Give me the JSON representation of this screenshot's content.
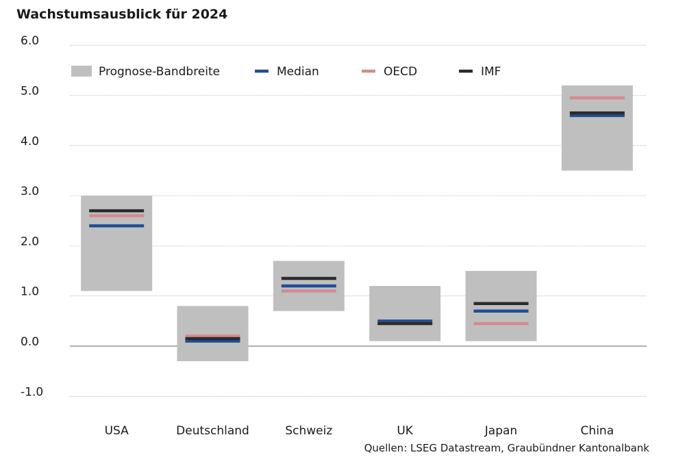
{
  "chart_data": {
    "type": "range-bar",
    "title": "Wachstumsausblick für 2024",
    "source": "Quellen: LSEG Datastream, Graubündner Kantonalbank",
    "ylim": [
      -1.0,
      6.0
    ],
    "yticks": [
      "6.0",
      "5.0",
      "4.0",
      "3.0",
      "2.0",
      "1.0",
      "0.0",
      "-1.0"
    ],
    "ytick_values": [
      6,
      5,
      4,
      3,
      2,
      1,
      0,
      -1
    ],
    "grid": true,
    "legend_position": "top-left",
    "legend": [
      {
        "key": "band",
        "label": "Prognose-Bandbreite"
      },
      {
        "key": "median",
        "label": "Median"
      },
      {
        "key": "oecd",
        "label": "OECD"
      },
      {
        "key": "imf",
        "label": "IMF"
      }
    ],
    "colors": {
      "band": "#bfbfbf",
      "median": "#1f4e96",
      "oecd": "#d48a8f",
      "imf": "#2b2b2b",
      "grid": "#b0b0b0",
      "zero": "#808080"
    },
    "categories": [
      "USA",
      "Deutschland",
      "Schweiz",
      "UK",
      "Japan",
      "China"
    ],
    "band_low": [
      1.1,
      -0.3,
      0.7,
      0.1,
      0.1,
      3.5
    ],
    "band_high": [
      3.0,
      0.8,
      1.7,
      1.2,
      1.5,
      5.2
    ],
    "series": [
      {
        "name": "Median",
        "key": "median",
        "values": [
          2.4,
          0.1,
          1.2,
          0.5,
          0.7,
          4.6
        ]
      },
      {
        "name": "OECD",
        "key": "oecd",
        "values": [
          2.6,
          0.2,
          1.1,
          0.45,
          0.45,
          4.95
        ]
      },
      {
        "name": "IMF",
        "key": "imf",
        "values": [
          2.7,
          0.15,
          1.35,
          0.45,
          0.85,
          4.65
        ]
      }
    ]
  }
}
